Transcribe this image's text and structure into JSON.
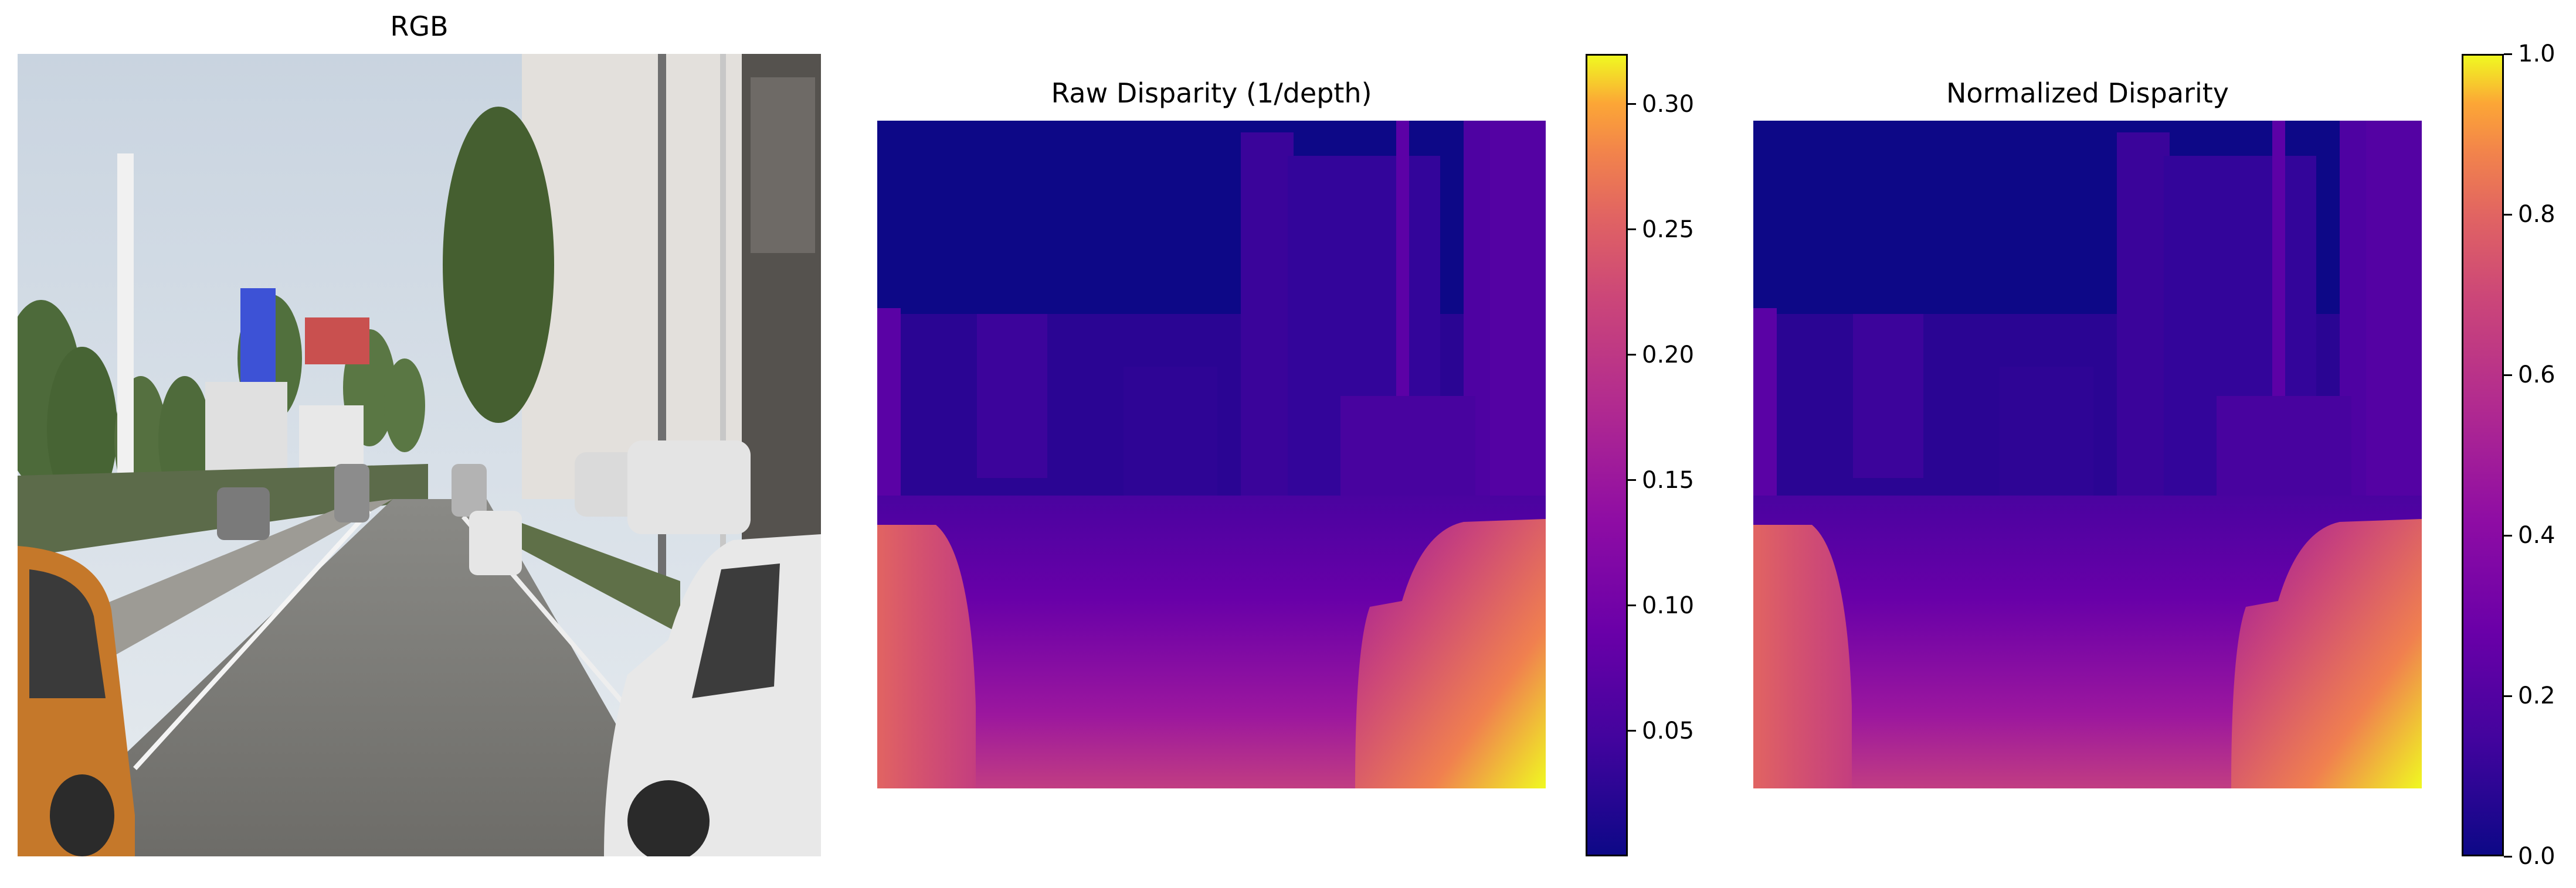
{
  "figure": {
    "panels": [
      {
        "title": "RGB",
        "kind": "rgb-image"
      },
      {
        "title": "Raw Disparity (1/depth)",
        "kind": "disparity-heatmap",
        "colormap": "plasma"
      },
      {
        "title": "Normalized Disparity",
        "kind": "disparity-heatmap",
        "colormap": "plasma"
      }
    ]
  },
  "chart_data": [
    {
      "type": "heatmap",
      "title": "Raw Disparity (1/depth)",
      "colormap": "plasma",
      "colorbar": {
        "range": [
          0.0,
          0.32
        ],
        "ticks": [
          0.05,
          0.1,
          0.15,
          0.2,
          0.25,
          0.3
        ],
        "tick_labels": [
          "0.05",
          "0.10",
          "0.15",
          "0.20",
          "0.25",
          "0.30"
        ]
      }
    },
    {
      "type": "heatmap",
      "title": "Normalized Disparity",
      "colormap": "plasma",
      "colorbar": {
        "range": [
          0.0,
          1.0
        ],
        "ticks": [
          0.0,
          0.2,
          0.4,
          0.6,
          0.8,
          1.0
        ],
        "tick_labels": [
          "0.0",
          "0.2",
          "0.4",
          "0.6",
          "0.8",
          "1.0"
        ]
      }
    }
  ]
}
